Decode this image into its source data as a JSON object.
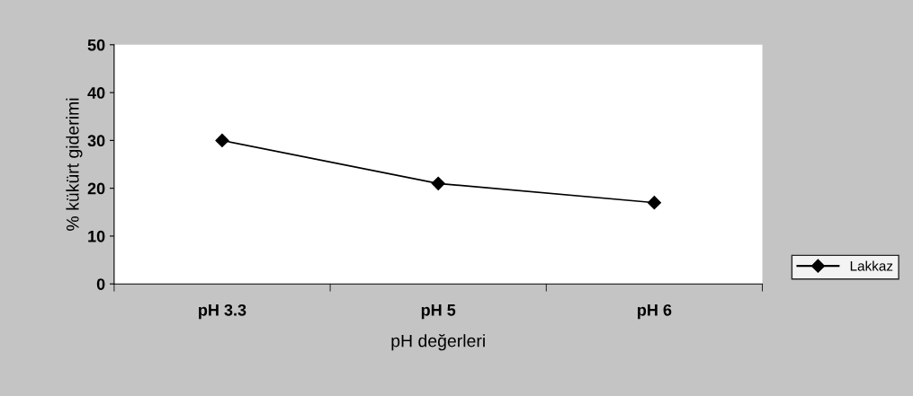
{
  "chart_data": {
    "type": "line",
    "xlabel": "pH değerleri",
    "ylabel": "% kükürt giderimi",
    "categories": [
      "pH 3.3",
      "pH 5",
      "pH 6"
    ],
    "series": [
      {
        "name": "Lakkaz",
        "color": "#000000",
        "values": [
          30,
          21,
          17
        ]
      }
    ],
    "ylim": [
      0,
      50
    ],
    "yticks": [
      0,
      10,
      20,
      30,
      40,
      50
    ],
    "marker": "diamond",
    "line_style": "solid",
    "grid": false,
    "legend": "right"
  }
}
